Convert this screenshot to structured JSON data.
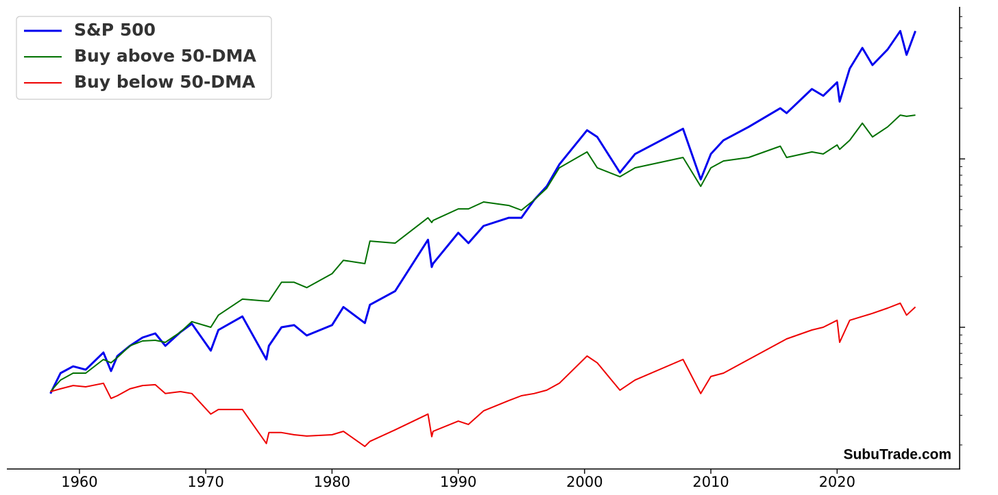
{
  "chart_data": {
    "type": "line",
    "annotation": "SubuTrade.com",
    "x": [
      1957.7,
      1958.5,
      1959.5,
      1960.5,
      1961.9,
      1962.5,
      1963,
      1964,
      1965,
      1966,
      1966.8,
      1968,
      1968.9,
      1970.4,
      1971,
      1972.9,
      1974.8,
      1975,
      1976,
      1977,
      1978,
      1980,
      1980.9,
      1982.6,
      1983,
      1985,
      1987.6,
      1987.9,
      1988,
      1990,
      1990.8,
      1992,
      1994,
      1995,
      1996,
      1997,
      1998,
      2000.2,
      2001,
      2002.8,
      2004,
      2007.8,
      2009.2,
      2010,
      2011,
      2013,
      2015.5,
      2016,
      2018,
      2018.9,
      2020,
      2020.2,
      2021,
      2022,
      2022.8,
      2024,
      2025,
      2025.5,
      2026.2
    ],
    "series": [
      {
        "name": "S&P 500",
        "color": "#0000ee",
        "width": 3,
        "values": [
          0.404,
          0.534,
          0.586,
          0.56,
          0.708,
          0.55,
          0.675,
          0.776,
          0.869,
          0.919,
          0.776,
          0.937,
          1.05,
          0.727,
          0.963,
          1.16,
          0.644,
          0.776,
          1.0,
          1.03,
          0.894,
          1.03,
          1.32,
          1.06,
          1.36,
          1.64,
          3.31,
          2.28,
          2.39,
          3.64,
          3.16,
          4.0,
          4.47,
          4.47,
          5.7,
          6.87,
          9.27,
          14.8,
          13.5,
          8.29,
          10.7,
          15.1,
          7.55,
          10.7,
          12.9,
          15.5,
          20.0,
          18.7,
          26.0,
          23.7,
          28.5,
          21.9,
          34.4,
          45.6,
          36.1,
          44.7,
          57.5,
          41.5,
          57.5
        ]
      },
      {
        "name": "Buy above 50-DMA",
        "color": "#007000",
        "width": 2,
        "values": [
          0.415,
          0.486,
          0.534,
          0.534,
          0.644,
          0.615,
          0.662,
          0.776,
          0.829,
          0.837,
          0.814,
          0.937,
          1.08,
          1.0,
          1.18,
          1.47,
          1.43,
          1.43,
          1.85,
          1.85,
          1.72,
          2.08,
          2.5,
          2.39,
          3.25,
          3.16,
          4.47,
          4.19,
          4.31,
          5.05,
          5.05,
          5.55,
          5.29,
          4.96,
          5.7,
          6.69,
          8.85,
          11.0,
          8.85,
          7.84,
          8.85,
          10.2,
          6.87,
          8.85,
          9.72,
          10.2,
          11.9,
          10.2,
          11.0,
          10.7,
          12.1,
          11.4,
          12.9,
          16.3,
          13.5,
          15.5,
          18.2,
          17.9,
          18.2
        ]
      },
      {
        "name": "Buy below 50-DMA",
        "color": "#ee0000",
        "width": 2,
        "values": [
          0.415,
          0.431,
          0.451,
          0.443,
          0.465,
          0.378,
          0.392,
          0.431,
          0.451,
          0.456,
          0.404,
          0.415,
          0.404,
          0.305,
          0.325,
          0.325,
          0.204,
          0.237,
          0.237,
          0.23,
          0.226,
          0.23,
          0.241,
          0.196,
          0.21,
          0.246,
          0.305,
          0.224,
          0.241,
          0.277,
          0.265,
          0.319,
          0.367,
          0.392,
          0.404,
          0.423,
          0.465,
          0.675,
          0.615,
          0.423,
          0.486,
          0.644,
          0.404,
          0.51,
          0.534,
          0.644,
          0.814,
          0.853,
          0.963,
          1.0,
          1.1,
          0.814,
          1.1,
          1.16,
          1.21,
          1.3,
          1.39,
          1.18,
          1.32
        ]
      }
    ],
    "xlim": [
      1954.25,
      2029.7
    ],
    "xticks": [
      1960,
      1970,
      1980,
      1990,
      2000,
      2010,
      2020
    ],
    "ylim": [
      0.144,
      80
    ],
    "yticks": [
      1,
      10
    ],
    "yticks_minor": [
      0.2,
      0.3,
      0.4,
      0.5,
      0.6,
      0.7,
      0.8,
      0.9,
      2,
      3,
      4,
      5,
      6,
      7,
      8,
      9,
      20,
      30,
      40,
      50,
      60,
      70
    ],
    "log_y": true,
    "ytick_side": "right",
    "grid": false,
    "legend": "upper left"
  }
}
